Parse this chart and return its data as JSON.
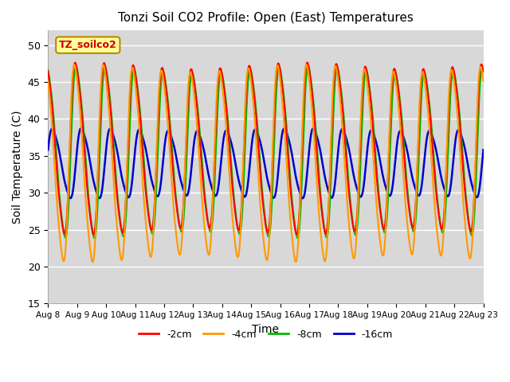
{
  "title": "Tonzi Soil CO2 Profile: Open (East) Temperatures",
  "xlabel": "Time",
  "ylabel": "Soil Temperature (C)",
  "ylim": [
    15,
    52
  ],
  "yticks": [
    15,
    20,
    25,
    30,
    35,
    40,
    45,
    50
  ],
  "x_tick_labels": [
    "Aug 8",
    "Aug 9",
    "Aug 10",
    "Aug 11",
    "Aug 12",
    "Aug 13",
    "Aug 14",
    "Aug 15",
    "Aug 16",
    "Aug 17",
    "Aug 18",
    "Aug 19",
    "Aug 20",
    "Aug 21",
    "Aug 22",
    "Aug 23"
  ],
  "colors": {
    "-2cm": "#ff0000",
    "-4cm": "#ff9900",
    "-8cm": "#00bb00",
    "-16cm": "#0000cc"
  },
  "legend_label": "TZ_soilco2",
  "legend_label_color": "#cc0000",
  "legend_box_color": "#ffff99",
  "background_color": "#d8d8d8",
  "days": 15,
  "n_points": 7200,
  "series": {
    "-2cm": {
      "amp": 13.5,
      "mean": 36.0,
      "phase": 0.0,
      "lw": 1.5
    },
    "-4cm": {
      "amp": 15.5,
      "mean": 34.0,
      "phase": 0.18,
      "lw": 1.5
    },
    "-8cm": {
      "amp": 13.5,
      "mean": 35.5,
      "phase": -0.2,
      "lw": 1.5
    },
    "-16cm": {
      "amp": 5.5,
      "mean": 34.0,
      "phase": -1.3,
      "lw": 1.8
    }
  }
}
